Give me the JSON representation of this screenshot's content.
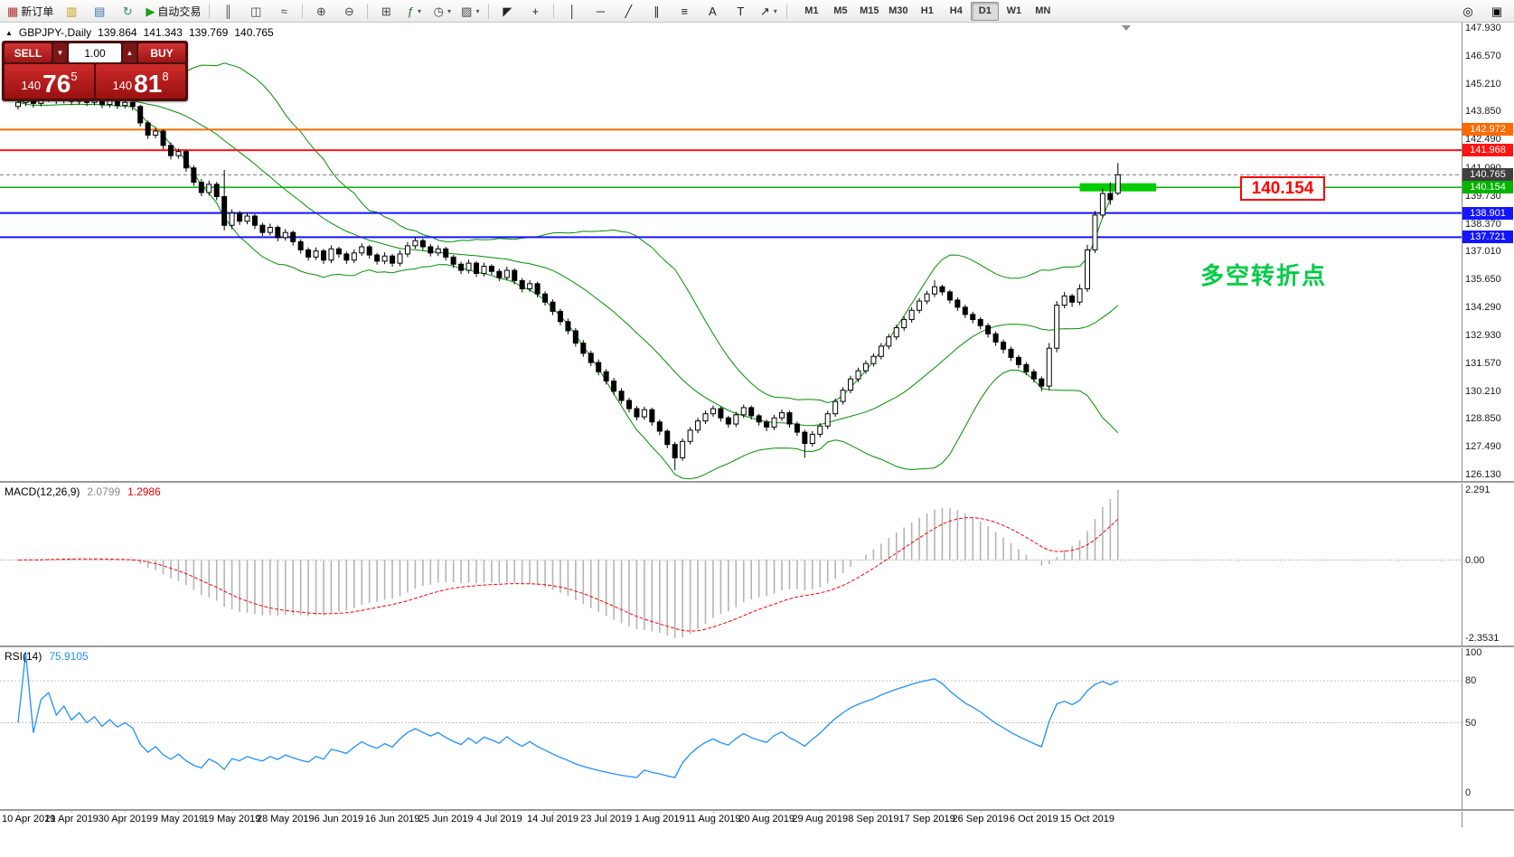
{
  "toolbar": {
    "buttons": [
      {
        "name": "new-order",
        "label": "新订单",
        "glyph": "▦",
        "color": "#b03030"
      },
      {
        "name": "market-watch",
        "glyph": "▥",
        "color": "#c89a00"
      },
      {
        "name": "data-window",
        "glyph": "▤",
        "color": "#3a6ea5"
      },
      {
        "name": "refresh",
        "glyph": "↻",
        "color": "#2e8b57"
      },
      {
        "name": "autotrade",
        "label": "自动交易",
        "glyph": "▶",
        "color": "#14a014"
      },
      {
        "sep": true
      },
      {
        "name": "bars-chart",
        "glyph": "║",
        "color": "#444"
      },
      {
        "name": "candles-chart",
        "glyph": "◫",
        "color": "#444"
      },
      {
        "name": "line-chart",
        "glyph": "≈",
        "color": "#444"
      },
      {
        "sep": true
      },
      {
        "name": "zoom-in",
        "glyph": "⊕",
        "color": "#444"
      },
      {
        "name": "zoom-out",
        "glyph": "⊖",
        "color": "#444"
      },
      {
        "sep": true
      },
      {
        "name": "tile-windows",
        "glyph": "⊞",
        "color": "#444"
      },
      {
        "name": "indicators",
        "glyph": "ƒ",
        "color": "#187818",
        "caret": true
      },
      {
        "name": "chart-periods",
        "glyph": "◷",
        "color": "#444",
        "caret": true
      },
      {
        "name": "templates",
        "glyph": "▨",
        "color": "#444",
        "caret": true
      },
      {
        "sep": true
      },
      {
        "name": "cursor",
        "glyph": "◤",
        "color": "#222"
      },
      {
        "name": "crosshair",
        "glyph": "+",
        "color": "#222"
      },
      {
        "sep": true
      },
      {
        "name": "vertical-line",
        "glyph": "│",
        "color": "#222"
      },
      {
        "name": "horizontal-line",
        "glyph": "─",
        "color": "#222"
      },
      {
        "name": "trendline",
        "glyph": "╱",
        "color": "#222"
      },
      {
        "name": "channel",
        "glyph": "∥",
        "color": "#222"
      },
      {
        "name": "fibonacci",
        "glyph": "≡",
        "color": "#222"
      },
      {
        "name": "text",
        "glyph": "A",
        "color": "#222"
      },
      {
        "name": "text-label",
        "glyph": "T",
        "color": "#222"
      },
      {
        "name": "arrows",
        "glyph": "↗",
        "color": "#222",
        "caret": true
      },
      {
        "sep": true
      }
    ],
    "periods": [
      "M1",
      "M5",
      "M15",
      "M30",
      "H1",
      "H4",
      "D1",
      "W1",
      "MN"
    ],
    "active_period": "D1",
    "right_buttons": [
      {
        "name": "search",
        "glyph": "◎"
      },
      {
        "name": "mobile-terminal",
        "glyph": "▣"
      }
    ]
  },
  "symbol_info": {
    "toggle": "▲",
    "symbol": "GBPJPY-,Daily",
    "open": "139.864",
    "high": "141.343",
    "low": "139.769",
    "close": "140.765"
  },
  "trade_panel": {
    "sell_label": "SELL",
    "buy_label": "BUY",
    "lots": "1.00",
    "spin_down": "▼",
    "spin_up": "▲",
    "sell_price": {
      "prefix": "140",
      "main": "76",
      "sup": "5"
    },
    "buy_price": {
      "prefix": "140",
      "main": "81",
      "sup": "8"
    }
  },
  "price_axis": {
    "labels": [
      "147.930",
      "146.570",
      "145.210",
      "143.850",
      "142.490",
      "141.090",
      "139.730",
      "138.370",
      "137.010",
      "135.650",
      "134.290",
      "132.930",
      "131.570",
      "130.210",
      "128.850",
      "127.490",
      "126.130"
    ],
    "tags": [
      {
        "label": "142.972",
        "color": "#ff6a00"
      },
      {
        "label": "141.968",
        "color": "#ff1414"
      },
      {
        "label": "140.765",
        "color": "#3f3f3f"
      },
      {
        "label": "140.154",
        "color": "#00b400"
      },
      {
        "label": "138.901",
        "color": "#1414ff"
      },
      {
        "label": "137.721",
        "color": "#1414ff"
      }
    ]
  },
  "indicators": {
    "macd_label": "MACD(12,26,9)",
    "macd_main": "2.0799",
    "macd_signal": "1.2986",
    "macd_scale": [
      "2.291",
      "0.00",
      "-2.3531"
    ],
    "rsi_label": "RSI(14)",
    "rsi_value": "75.9105",
    "rsi_scale": [
      "100",
      "80",
      "50",
      "0"
    ]
  },
  "annotations": {
    "price_box": "140.154",
    "box_color": "#ff0000",
    "note_text": "多空转折点",
    "note_color": "#00cc44"
  },
  "chart_data": {
    "type": "candlestick",
    "symbol": "GBPJPY",
    "timeframe": "D1",
    "price_range": [
      126.13,
      147.93
    ],
    "bars_per_label": 7,
    "current_price": 140.765,
    "last_bar_ohlc": [
      139.864,
      141.343,
      139.769,
      140.765
    ],
    "x_labels": [
      "10 Apr 2019",
      "21 Apr 2019",
      "30 Apr 2019",
      "9 May 2019",
      "19 May 2019",
      "28 May 2019",
      "6 Jun 2019",
      "16 Jun 2019",
      "25 Jun 2019",
      "4 Jul 2019",
      "14 Jul 2019",
      "23 Jul 2019",
      "1 Aug 2019",
      "11 Aug 2019",
      "20 Aug 2019",
      "29 Aug 2019",
      "8 Sep 2019",
      "17 Sep 2019",
      "26 Sep 2019",
      "6 Oct 2019",
      "15 Oct 2019"
    ],
    "overlays": [
      {
        "name": "Bollinger Bands",
        "period": 20,
        "deviation": 2,
        "color": "#009100"
      }
    ],
    "hlines": [
      {
        "price": 142.972,
        "color": "#ff6a00",
        "width": 2
      },
      {
        "price": 141.968,
        "color": "#ff1414",
        "width": 2
      },
      {
        "price": 140.154,
        "color": "#00b400",
        "width": 1.5
      },
      {
        "price": 138.901,
        "color": "#1414ff",
        "width": 2
      },
      {
        "price": 137.721,
        "color": "#1414ff",
        "width": 2
      }
    ],
    "thick_segment": {
      "price": 140.154,
      "from_bar": 139,
      "to_bar": 149,
      "color": "#00cc00",
      "height": 9
    },
    "macd": {
      "fast": 12,
      "slow": 26,
      "signal": 9,
      "scale": [
        2.291,
        0,
        -2.3531
      ],
      "histogram_color": "#b4b4b4",
      "signal_color": "#ff0000"
    },
    "rsi": {
      "period": 14,
      "value": 75.9105,
      "levels": [
        80,
        50
      ],
      "color": "#1e90ff"
    },
    "candles": [
      [
        144.1,
        144.52,
        143.95,
        144.3
      ],
      [
        144.3,
        144.6,
        144.12,
        144.45
      ],
      [
        144.45,
        144.58,
        144.05,
        144.25
      ],
      [
        144.25,
        144.65,
        144.1,
        144.5
      ],
      [
        144.5,
        144.78,
        144.32,
        144.6
      ],
      [
        144.6,
        144.72,
        144.22,
        144.4
      ],
      [
        144.4,
        144.7,
        144.25,
        144.55
      ],
      [
        144.55,
        144.68,
        144.18,
        144.35
      ],
      [
        144.35,
        144.62,
        144.2,
        144.5
      ],
      [
        144.5,
        144.6,
        144.12,
        144.3
      ],
      [
        144.3,
        144.58,
        144.15,
        144.45
      ],
      [
        144.45,
        144.55,
        144.02,
        144.2
      ],
      [
        144.2,
        144.52,
        144.05,
        144.4
      ],
      [
        144.4,
        144.5,
        143.98,
        144.15
      ],
      [
        144.15,
        144.45,
        144.0,
        144.3
      ],
      [
        144.3,
        144.42,
        143.9,
        144.1
      ],
      [
        144.1,
        144.18,
        143.12,
        143.3
      ],
      [
        143.3,
        143.42,
        142.52,
        142.7
      ],
      [
        142.7,
        143.05,
        142.55,
        142.9
      ],
      [
        142.9,
        142.98,
        142.02,
        142.2
      ],
      [
        142.2,
        142.35,
        141.52,
        141.7
      ],
      [
        141.7,
        142.05,
        141.55,
        141.9
      ],
      [
        141.9,
        141.98,
        140.92,
        141.1
      ],
      [
        141.1,
        141.22,
        140.22,
        140.4
      ],
      [
        140.4,
        140.55,
        139.72,
        139.9
      ],
      [
        139.9,
        140.48,
        139.75,
        140.3
      ],
      [
        140.3,
        140.42,
        139.52,
        139.7
      ],
      [
        139.7,
        141.0,
        138.05,
        138.3
      ],
      [
        138.3,
        139.08,
        138.12,
        138.9
      ],
      [
        138.9,
        139.0,
        138.32,
        138.5
      ],
      [
        138.5,
        138.92,
        138.35,
        138.75
      ],
      [
        138.75,
        138.85,
        138.12,
        138.3
      ],
      [
        138.3,
        138.42,
        137.78,
        137.95
      ],
      [
        137.95,
        138.38,
        137.8,
        138.2
      ],
      [
        138.2,
        138.3,
        137.52,
        137.7
      ],
      [
        137.7,
        138.12,
        137.55,
        137.95
      ],
      [
        137.95,
        138.05,
        137.32,
        137.5
      ],
      [
        137.5,
        137.62,
        136.92,
        137.1
      ],
      [
        137.1,
        137.22,
        136.58,
        136.75
      ],
      [
        136.75,
        137.22,
        136.6,
        137.05
      ],
      [
        137.05,
        137.15,
        136.42,
        136.6
      ],
      [
        136.6,
        137.32,
        136.45,
        137.15
      ],
      [
        137.15,
        137.25,
        136.72,
        136.9
      ],
      [
        136.9,
        137.02,
        136.42,
        136.6
      ],
      [
        136.6,
        137.12,
        136.45,
        136.95
      ],
      [
        136.95,
        137.42,
        136.8,
        137.25
      ],
      [
        137.25,
        137.35,
        136.68,
        136.85
      ],
      [
        136.85,
        136.95,
        136.38,
        136.55
      ],
      [
        136.55,
        136.98,
        136.4,
        136.8
      ],
      [
        136.8,
        136.9,
        136.28,
        136.45
      ],
      [
        136.45,
        137.08,
        136.3,
        136.9
      ],
      [
        136.9,
        137.48,
        136.75,
        137.3
      ],
      [
        137.3,
        137.72,
        137.15,
        137.55
      ],
      [
        137.55,
        137.65,
        137.08,
        137.25
      ],
      [
        137.25,
        137.38,
        136.78,
        136.95
      ],
      [
        136.95,
        137.32,
        136.8,
        137.15
      ],
      [
        137.15,
        137.25,
        136.58,
        136.75
      ],
      [
        136.75,
        136.85,
        136.22,
        136.4
      ],
      [
        136.4,
        136.52,
        135.92,
        136.1
      ],
      [
        136.1,
        136.62,
        135.95,
        136.45
      ],
      [
        136.45,
        136.55,
        135.78,
        135.95
      ],
      [
        135.95,
        136.48,
        135.8,
        136.3
      ],
      [
        136.3,
        136.4,
        135.88,
        136.05
      ],
      [
        136.05,
        136.18,
        135.58,
        135.75
      ],
      [
        135.75,
        136.28,
        135.6,
        136.1
      ],
      [
        136.1,
        136.2,
        135.42,
        135.6
      ],
      [
        135.6,
        135.72,
        135.02,
        135.2
      ],
      [
        135.2,
        135.62,
        135.05,
        135.45
      ],
      [
        135.45,
        135.55,
        134.78,
        134.95
      ],
      [
        134.95,
        135.08,
        134.38,
        134.55
      ],
      [
        134.55,
        134.68,
        133.92,
        134.1
      ],
      [
        134.1,
        134.22,
        133.42,
        133.6
      ],
      [
        133.6,
        133.75,
        132.98,
        133.15
      ],
      [
        133.15,
        133.28,
        132.38,
        132.55
      ],
      [
        132.55,
        132.7,
        131.88,
        132.05
      ],
      [
        132.05,
        132.18,
        131.42,
        131.6
      ],
      [
        131.6,
        131.75,
        130.98,
        131.15
      ],
      [
        131.15,
        131.28,
        130.52,
        130.7
      ],
      [
        130.7,
        130.85,
        130.02,
        130.2
      ],
      [
        130.2,
        130.35,
        129.58,
        129.75
      ],
      [
        129.75,
        129.88,
        129.18,
        129.35
      ],
      [
        129.35,
        129.48,
        128.78,
        128.95
      ],
      [
        128.95,
        129.45,
        128.8,
        129.3
      ],
      [
        129.3,
        129.4,
        128.52,
        128.7
      ],
      [
        128.7,
        128.82,
        128.05,
        128.25
      ],
      [
        128.25,
        128.35,
        127.42,
        127.6
      ],
      [
        127.6,
        127.72,
        126.35,
        126.95
      ],
      [
        126.95,
        127.9,
        126.8,
        127.75
      ],
      [
        127.75,
        128.45,
        127.6,
        128.3
      ],
      [
        128.3,
        128.9,
        128.15,
        128.75
      ],
      [
        128.75,
        129.25,
        128.6,
        129.1
      ],
      [
        129.1,
        129.5,
        128.95,
        129.35
      ],
      [
        129.35,
        129.45,
        128.72,
        128.9
      ],
      [
        128.9,
        129.0,
        128.42,
        128.6
      ],
      [
        128.6,
        129.2,
        128.45,
        129.05
      ],
      [
        129.05,
        129.55,
        128.9,
        129.4
      ],
      [
        129.4,
        129.5,
        128.82,
        129.0
      ],
      [
        129.0,
        129.1,
        128.52,
        128.7
      ],
      [
        128.7,
        128.82,
        128.25,
        128.45
      ],
      [
        128.45,
        129.05,
        128.3,
        128.9
      ],
      [
        128.9,
        129.32,
        128.75,
        129.15
      ],
      [
        129.15,
        129.25,
        128.42,
        128.6
      ],
      [
        128.6,
        128.72,
        128.02,
        128.2
      ],
      [
        128.2,
        128.32,
        126.95,
        127.65
      ],
      [
        127.65,
        128.25,
        127.5,
        128.1
      ],
      [
        128.1,
        128.65,
        127.95,
        128.5
      ],
      [
        128.5,
        129.25,
        128.35,
        129.1
      ],
      [
        129.1,
        129.85,
        128.95,
        129.7
      ],
      [
        129.7,
        130.4,
        129.55,
        130.25
      ],
      [
        130.25,
        130.95,
        130.1,
        130.8
      ],
      [
        130.8,
        131.35,
        130.65,
        131.2
      ],
      [
        131.2,
        131.7,
        131.05,
        131.55
      ],
      [
        131.55,
        132.05,
        131.4,
        131.9
      ],
      [
        131.9,
        132.55,
        131.75,
        132.4
      ],
      [
        132.4,
        133.0,
        132.25,
        132.85
      ],
      [
        132.85,
        133.45,
        132.7,
        133.3
      ],
      [
        133.3,
        133.85,
        133.15,
        133.7
      ],
      [
        133.7,
        134.3,
        133.55,
        134.15
      ],
      [
        134.15,
        134.75,
        134.0,
        134.6
      ],
      [
        134.6,
        135.1,
        134.45,
        134.95
      ],
      [
        134.95,
        135.62,
        134.8,
        135.3
      ],
      [
        135.3,
        135.4,
        134.88,
        135.05
      ],
      [
        135.05,
        135.15,
        134.48,
        134.65
      ],
      [
        134.65,
        134.78,
        134.12,
        134.3
      ],
      [
        134.3,
        134.42,
        133.78,
        133.95
      ],
      [
        133.95,
        134.08,
        133.52,
        133.7
      ],
      [
        133.7,
        133.82,
        133.22,
        133.4
      ],
      [
        133.4,
        133.52,
        132.82,
        133.0
      ],
      [
        133.0,
        133.12,
        132.42,
        132.6
      ],
      [
        132.6,
        132.72,
        132.05,
        132.25
      ],
      [
        132.25,
        132.38,
        131.68,
        131.85
      ],
      [
        131.85,
        131.98,
        131.32,
        131.5
      ],
      [
        131.5,
        131.62,
        130.98,
        131.15
      ],
      [
        131.15,
        131.28,
        130.62,
        130.8
      ],
      [
        130.8,
        130.92,
        130.2,
        130.45
      ],
      [
        130.45,
        132.55,
        130.25,
        132.3
      ],
      [
        132.3,
        134.6,
        132.1,
        134.4
      ],
      [
        134.4,
        135.05,
        134.25,
        134.85
      ],
      [
        134.85,
        134.95,
        134.32,
        134.55
      ],
      [
        134.55,
        135.42,
        134.4,
        135.2
      ],
      [
        135.2,
        137.35,
        135.05,
        137.1
      ],
      [
        137.1,
        139.0,
        136.95,
        138.8
      ],
      [
        138.8,
        140.1,
        138.65,
        139.85
      ],
      [
        139.85,
        140.4,
        139.3,
        139.55
      ],
      [
        139.864,
        141.343,
        139.769,
        140.765
      ]
    ]
  }
}
